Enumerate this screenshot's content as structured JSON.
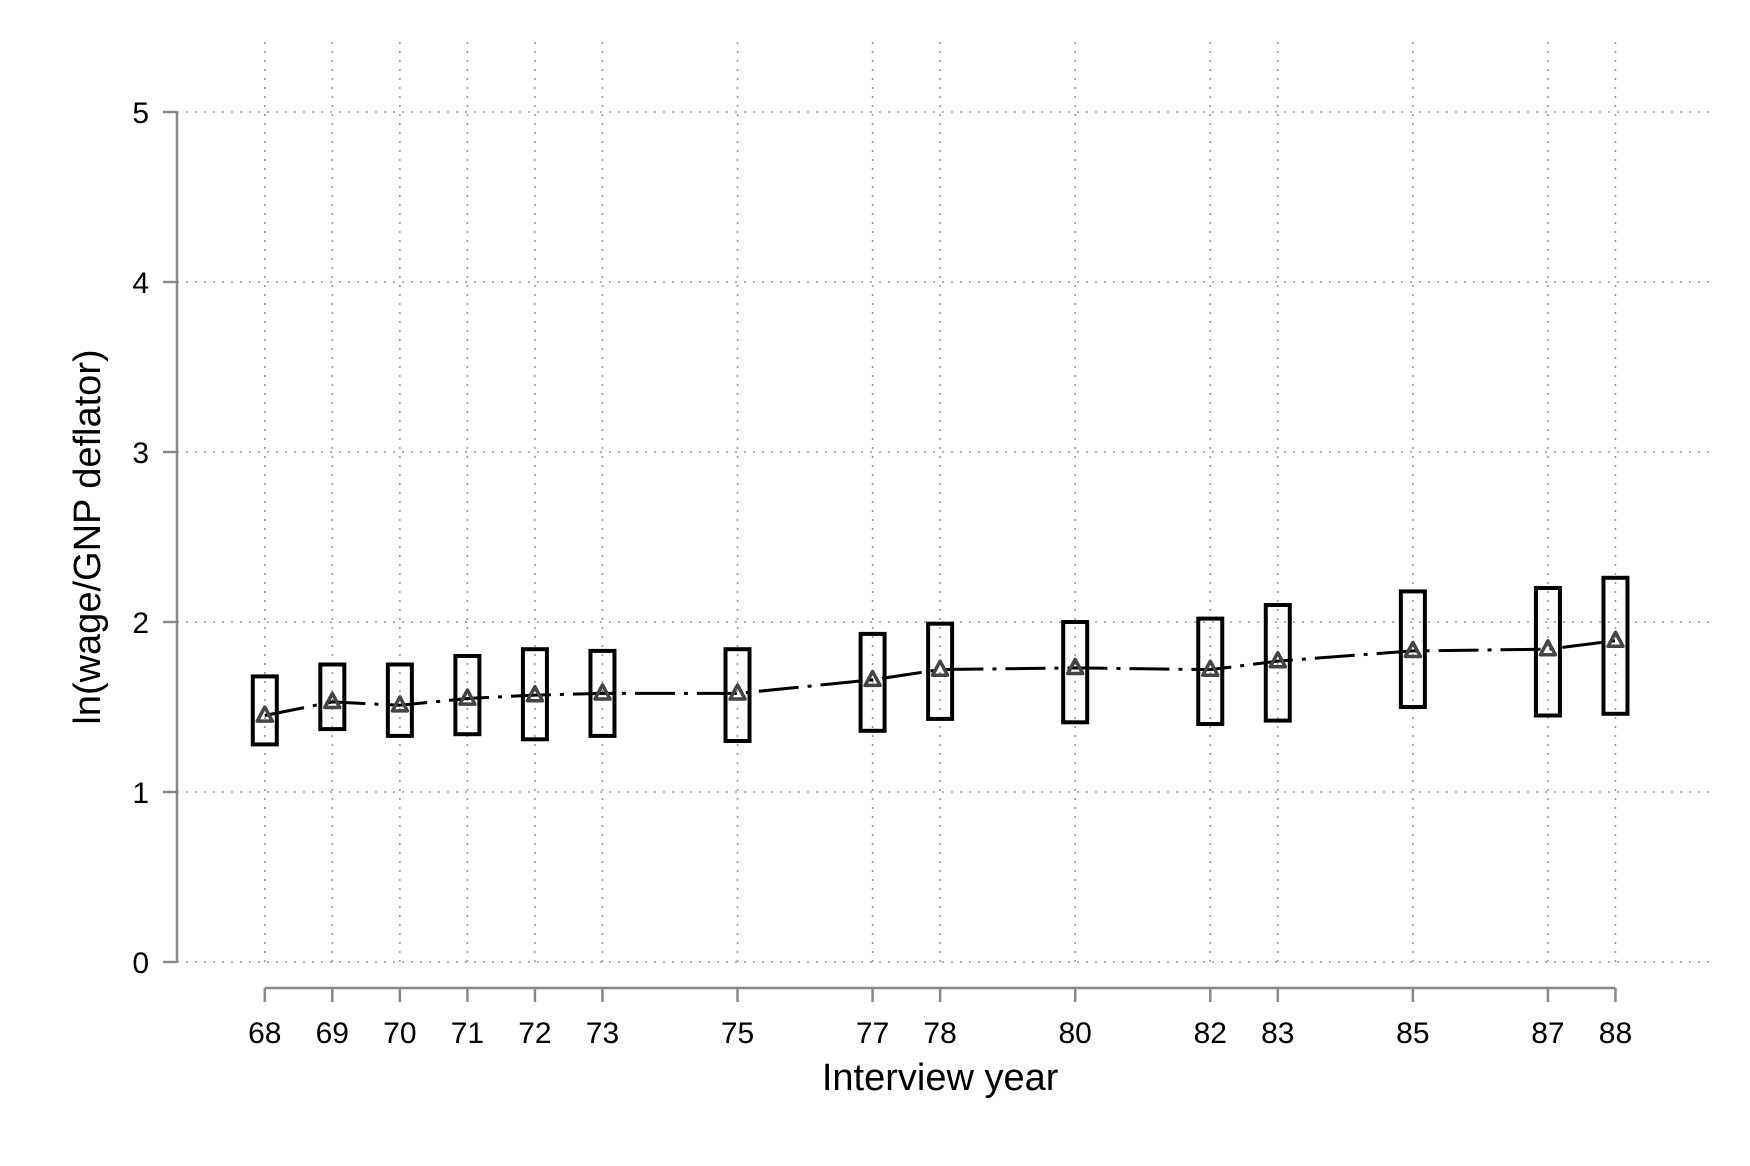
{
  "chart_data": {
    "type": "line",
    "xlabel": "Interview year",
    "ylabel": "ln(wage/GNP deflator)",
    "xlim": [
      66.7,
      89.4
    ],
    "ylim": [
      0,
      5
    ],
    "x_ticks": [
      68,
      69,
      70,
      71,
      72,
      73,
      75,
      77,
      78,
      80,
      82,
      83,
      85,
      87,
      88
    ],
    "y_ticks": [
      0,
      1,
      2,
      3,
      4,
      5
    ],
    "grid": true,
    "legend": "none",
    "colors": {
      "line": "#000000",
      "marker": "#444444",
      "box": "#000000",
      "grid": "#9a9a9a",
      "axis": "#888888"
    },
    "series": [
      {
        "x": [
          68,
          69,
          70,
          71,
          72,
          73,
          75,
          77,
          78,
          80,
          82,
          83,
          85,
          87,
          88
        ],
        "values": [
          1.45,
          1.53,
          1.51,
          1.55,
          1.57,
          1.58,
          1.58,
          1.66,
          1.72,
          1.73,
          1.72,
          1.77,
          1.83,
          1.84,
          1.89
        ],
        "low": [
          1.28,
          1.37,
          1.33,
          1.34,
          1.31,
          1.33,
          1.3,
          1.36,
          1.43,
          1.41,
          1.4,
          1.42,
          1.5,
          1.45,
          1.46
        ],
        "high": [
          1.68,
          1.75,
          1.75,
          1.8,
          1.84,
          1.83,
          1.84,
          1.93,
          1.99,
          2.0,
          2.02,
          2.1,
          2.18,
          2.2,
          2.26
        ]
      }
    ]
  }
}
